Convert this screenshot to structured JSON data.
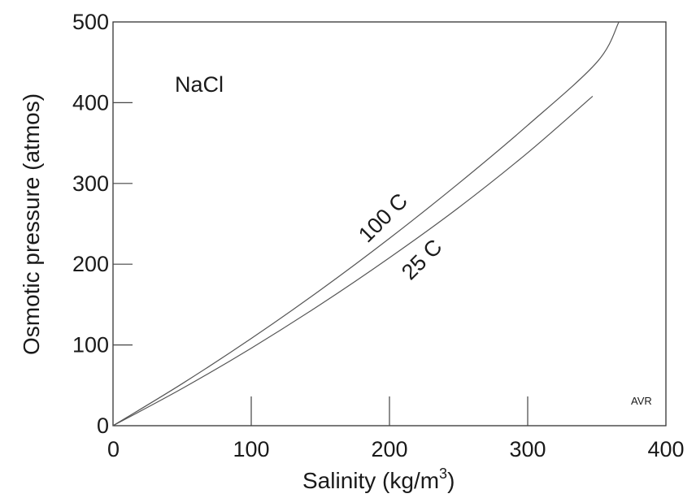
{
  "chart_data": {
    "type": "line",
    "title": "",
    "xlabel_main": "Salinity  (kg/m",
    "xlabel_sup": "3",
    "xlabel_tail": ")",
    "ylabel": "Osmotic pressure  (atmos)",
    "xlim": [
      0,
      400
    ],
    "ylim": [
      0,
      500
    ],
    "x_ticks": [
      0,
      100,
      200,
      300,
      400
    ],
    "y_ticks": [
      0,
      100,
      200,
      300,
      400,
      500
    ],
    "x_tick_labels": [
      "0",
      "100",
      "200",
      "300",
      "400"
    ],
    "y_tick_labels": [
      "0",
      "100",
      "200",
      "300",
      "400",
      "500"
    ],
    "grid": false,
    "series": [
      {
        "name": "100 C",
        "x": [
          0,
          50,
          100,
          150,
          200,
          250,
          300,
          350,
          366
        ],
        "y": [
          0,
          52,
          108,
          168,
          232,
          300,
          372,
          450,
          500
        ]
      },
      {
        "name": "25 C",
        "x": [
          0,
          50,
          100,
          150,
          200,
          250,
          300,
          347
        ],
        "y": [
          0,
          46,
          96,
          150,
          208,
          270,
          338,
          408
        ]
      }
    ],
    "annotations": {
      "substance": "NaCl",
      "credit": "AVR"
    }
  }
}
